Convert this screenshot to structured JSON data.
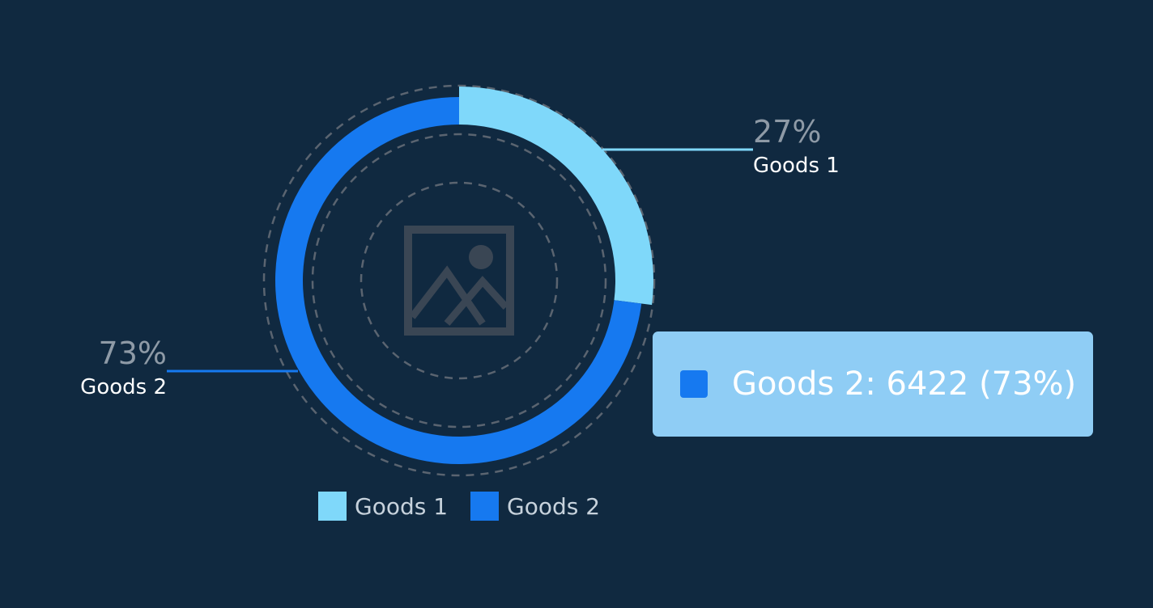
{
  "chart_data": {
    "type": "pie",
    "variant": "donut",
    "title": "",
    "series": [
      {
        "name": "Goods 1",
        "percent_label": "27%",
        "percent": 27,
        "color": "#7fd8fa"
      },
      {
        "name": "Goods 2",
        "percent_label": "73%",
        "percent": 73,
        "value": 6422,
        "color": "#1679f0"
      }
    ],
    "legend_position": "bottom"
  },
  "center_icon": "image-placeholder-icon",
  "tooltip": {
    "text": "Goods 2: 6422 (73%)",
    "swatch_color": "#1679f0",
    "background": "#8fcdf5"
  },
  "colors": {
    "background": "#102940",
    "guide_ring": "#5a6470"
  }
}
